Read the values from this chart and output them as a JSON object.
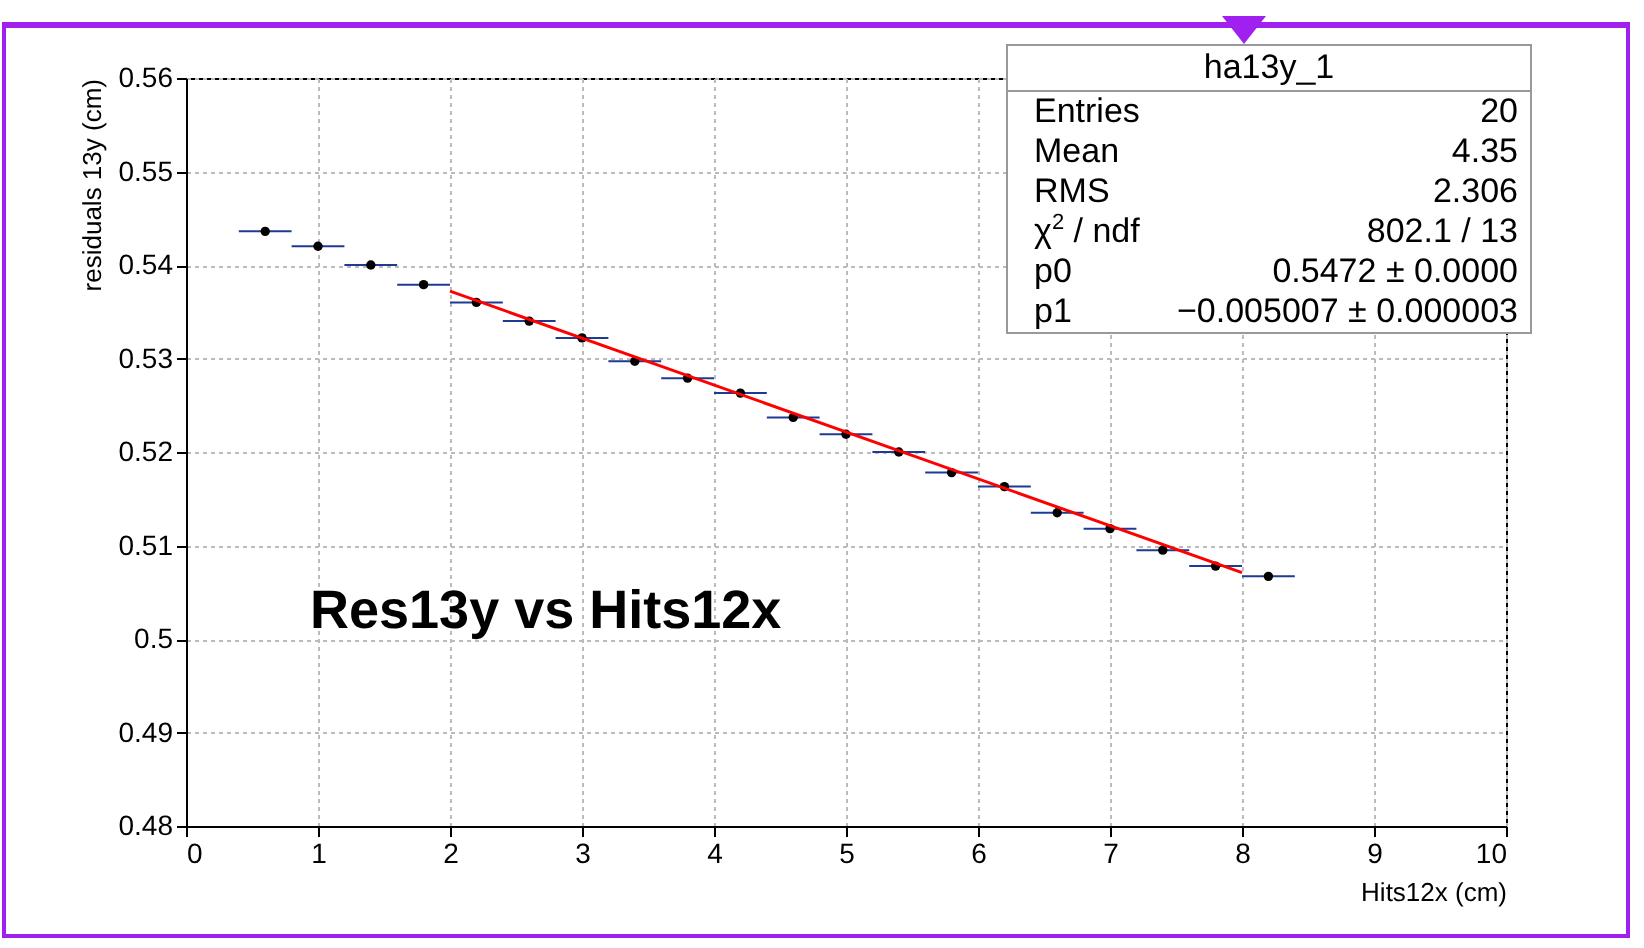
{
  "chart_data": {
    "type": "scatter",
    "title": "Res13y vs Hits12x",
    "xlabel": "Hits12x (cm)",
    "ylabel": "residuals 13y (cm)",
    "x": [
      0.6,
      1.0,
      1.4,
      1.8,
      2.2,
      2.6,
      3.0,
      3.4,
      3.8,
      4.2,
      4.6,
      5.0,
      5.4,
      5.8,
      6.2,
      6.6,
      7.0,
      7.4,
      7.8,
      8.2
    ],
    "series": [
      {
        "color": "#000000",
        "marker": "circle",
        "values": [
          0.5436,
          0.542,
          0.54,
          0.5379,
          0.536,
          0.534,
          0.5322,
          0.5297,
          0.5279,
          0.5263,
          0.5237,
          0.5219,
          0.52,
          0.5178,
          0.5163,
          0.5135,
          0.5118,
          0.5095,
          0.5078,
          0.5067
        ],
        "xerrors": [
          0.2,
          0.2,
          0.2,
          0.2,
          0.2,
          0.2,
          0.2,
          0.2,
          0.2,
          0.2,
          0.2,
          0.2,
          0.2,
          0.2,
          0.2,
          0.2,
          0.2,
          0.2,
          0.2,
          0.2
        ]
      },
      {
        "type": "line",
        "color": "#ff0000",
        "marker": "none",
        "x": [
          2,
          8
        ],
        "values": [
          0.5372,
          0.5071
        ]
      }
    ],
    "annotations": [
      "ha13y_1",
      "Entries",
      "20",
      "Mean",
      "4.35",
      "RMS",
      "2.306",
      "χ$^{2}$ / ndf",
      "802.1 / 13",
      "p0",
      "0.5472 ± 0.0000",
      "p1",
      "−0.005007 ± 0.000003"
    ],
    "xlim": [
      0,
      10
    ],
    "xticks": [
      0,
      1,
      2,
      3,
      4,
      5,
      6,
      7,
      8,
      9,
      10
    ],
    "ylim": [
      0.48,
      0.56
    ],
    "yticks": [
      0.48,
      0.49,
      0.5,
      0.51,
      0.52,
      0.53,
      0.54,
      0.55,
      0.56
    ],
    "grid": true,
    "line_style": "solid"
  }
}
